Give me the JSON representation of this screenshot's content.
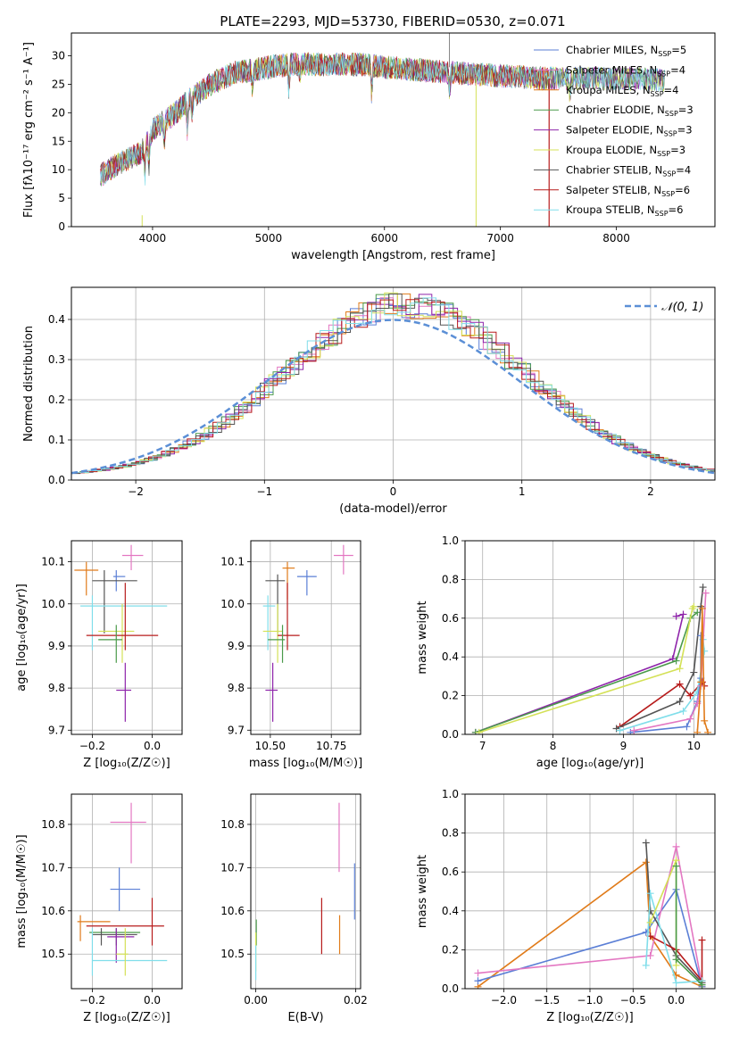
{
  "figure_title": "PLATE=2293, MJD=53730, FIBERID=0530, z=0.071",
  "colors": {
    "chabrier_miles": "#5b7fd6",
    "salpeter_miles": "#e377c2",
    "kroupa_miles": "#e07b1a",
    "chabrier_elodie": "#4a9a4a",
    "salpeter_elodie": "#8e24aa",
    "kroupa_elodie": "#d4e157",
    "chabrier_stelib": "#555555",
    "salpeter_stelib": "#b71c1c",
    "kroupa_stelib": "#80deea",
    "grid": "#b0b0b0",
    "gauss": "#5b8fd6"
  },
  "chart_data": [
    {
      "type": "line",
      "panel": "spectrum",
      "xlabel": "wavelength [Angstrom, rest frame]",
      "ylabel": "Flux [fλ10⁻¹⁷ erg cm⁻² s⁻¹ A⁻¹]",
      "xlim": [
        3300,
        8850
      ],
      "ylim": [
        0,
        34
      ],
      "xticks": [
        4000,
        5000,
        6000,
        7000,
        8000
      ],
      "yticks": [
        0,
        5,
        10,
        15,
        20,
        25,
        30
      ],
      "grid": false,
      "legend_position": "top-right",
      "continuum": {
        "x": [
          3550,
          3700,
          3800,
          3900,
          4000,
          4100,
          4200,
          4300,
          4500,
          4700,
          5000,
          5200,
          5500,
          5800,
          6000,
          6300,
          6600,
          7000,
          7400,
          7800,
          8200,
          8600
        ],
        "y": [
          9,
          11,
          12,
          13,
          17,
          18.5,
          20,
          22,
          25,
          27,
          28,
          28.5,
          28.5,
          28.5,
          28,
          27.5,
          27,
          26.5,
          26,
          26,
          26,
          25.5
        ]
      },
      "series": [
        {
          "name": "Chabrier MILES, N_SSP=5",
          "label_main": "Chabrier MILES, N",
          "label_sub": "SSP",
          "label_tail": "=5",
          "color_key": "chabrier_miles"
        },
        {
          "name": "Salpeter MILES, N_SSP=4",
          "label_main": "Salpeter MILES, N",
          "label_sub": "SSP",
          "label_tail": "=4",
          "color_key": "salpeter_miles"
        },
        {
          "name": "Kroupa MILES, N_SSP=4",
          "label_main": "Kroupa MILES, N",
          "label_sub": "SSP",
          "label_tail": "=4",
          "color_key": "kroupa_miles"
        },
        {
          "name": "Chabrier ELODIE, N_SSP=3",
          "label_main": "Chabrier ELODIE, N",
          "label_sub": "SSP",
          "label_tail": "=3",
          "color_key": "chabrier_elodie"
        },
        {
          "name": "Salpeter ELODIE, N_SSP=3",
          "label_main": "Salpeter ELODIE, N",
          "label_sub": "SSP",
          "label_tail": "=3",
          "color_key": "salpeter_elodie"
        },
        {
          "name": "Kroupa ELODIE, N_SSP=3",
          "label_main": "Kroupa ELODIE, N",
          "label_sub": "SSP",
          "label_tail": "=3",
          "color_key": "kroupa_elodie"
        },
        {
          "name": "Chabrier STELIB, N_SSP=4",
          "label_main": "Chabrier STELIB, N",
          "label_sub": "SSP",
          "label_tail": "=4",
          "color_key": "chabrier_stelib"
        },
        {
          "name": "Salpeter STELIB, N_SSP=6",
          "label_main": "Salpeter STELIB, N",
          "label_sub": "SSP",
          "label_tail": "=6",
          "color_key": "salpeter_stelib"
        },
        {
          "name": "Kroupa STELIB, N_SSP=6",
          "label_main": "Kroupa STELIB, N",
          "label_sub": "SSP",
          "label_tail": "=6",
          "color_key": "kroupa_stelib"
        }
      ]
    },
    {
      "type": "line",
      "panel": "residuals",
      "xlabel": "(data-model)/error",
      "ylabel": "Normed distribution",
      "xlim": [
        -2.5,
        2.5
      ],
      "ylim": [
        0,
        0.48
      ],
      "xticks": [
        -2,
        -1,
        0,
        1,
        2
      ],
      "xtick_labels": [
        "−2",
        "−1",
        "0",
        "1",
        "2"
      ],
      "yticks": [
        0.0,
        0.1,
        0.2,
        0.3,
        0.4
      ],
      "ytick_labels": [
        "0.0",
        "0.1",
        "0.2",
        "0.3",
        "0.4"
      ],
      "grid": true,
      "legend_position": "top-right",
      "legend_label": "𝒩(0, 1)",
      "bin_width": 0.1,
      "hist_mean": 0.1,
      "hist_sigma": 0.93
    },
    {
      "type": "scatter",
      "panel": "age_vs_Z",
      "xlabel": "Z [log₁₀(Z/Z☉)]",
      "ylabel": "age [log₁₀(age/yr)]",
      "xlim": [
        -0.27,
        0.1
      ],
      "ylim": [
        9.69,
        10.15
      ],
      "xticks": [
        -0.2,
        0.0
      ],
      "xtick_labels": [
        "−0.2",
        "0.0"
      ],
      "yticks": [
        9.7,
        9.8,
        9.9,
        10.0,
        10.1
      ],
      "ytick_labels": [
        "9.7",
        "9.8",
        "9.9",
        "10.0",
        "10.1"
      ],
      "grid": true,
      "points": [
        {
          "color_key": "salpeter_miles",
          "x": -0.07,
          "y": 10.115,
          "x_lo": -0.1,
          "x_hi": -0.03,
          "y_lo": 10.08,
          "y_hi": 10.14
        },
        {
          "color_key": "kroupa_miles",
          "x": -0.22,
          "y": 10.08,
          "x_lo": -0.26,
          "x_hi": -0.18,
          "y_lo": 10.02,
          "y_hi": 10.1
        },
        {
          "color_key": "chabrier_miles",
          "x": -0.12,
          "y": 10.065,
          "x_lo": -0.13,
          "x_hi": -0.09,
          "y_lo": 10.03,
          "y_hi": 10.08
        },
        {
          "color_key": "chabrier_stelib",
          "x": -0.16,
          "y": 10.055,
          "x_lo": -0.2,
          "x_hi": -0.05,
          "y_lo": 9.93,
          "y_hi": 10.08
        },
        {
          "color_key": "kroupa_stelib",
          "x": -0.2,
          "y": 9.995,
          "x_lo": -0.24,
          "x_hi": 0.05,
          "y_lo": 9.89,
          "y_hi": 10.02
        },
        {
          "color_key": "kroupa_elodie",
          "x": -0.1,
          "y": 9.935,
          "x_lo": -0.18,
          "x_hi": -0.06,
          "y_lo": 9.86,
          "y_hi": 10.0
        },
        {
          "color_key": "salpeter_stelib",
          "x": -0.09,
          "y": 9.925,
          "x_lo": -0.22,
          "x_hi": 0.02,
          "y_lo": 9.89,
          "y_hi": 10.05
        },
        {
          "color_key": "chabrier_elodie",
          "x": -0.12,
          "y": 9.915,
          "x_lo": -0.18,
          "x_hi": -0.1,
          "y_lo": 9.86,
          "y_hi": 9.95
        },
        {
          "color_key": "salpeter_elodie",
          "x": -0.09,
          "y": 9.795,
          "x_lo": -0.12,
          "x_hi": -0.07,
          "y_lo": 9.72,
          "y_hi": 9.86
        }
      ]
    },
    {
      "type": "scatter",
      "panel": "age_vs_mass",
      "xlabel": "mass [log₁₀(M/M☉)]",
      "ylabel": "",
      "xlim": [
        10.42,
        10.87
      ],
      "ylim": [
        9.69,
        10.15
      ],
      "xticks": [
        10.5,
        10.75
      ],
      "xtick_labels": [
        "10.50",
        "10.75"
      ],
      "yticks": [
        9.7,
        9.8,
        9.9,
        10.0,
        10.1
      ],
      "ytick_labels": [
        "9.7",
        "9.8",
        "9.9",
        "10.0",
        "10.1"
      ],
      "grid": true,
      "points": [
        {
          "color_key": "salpeter_miles",
          "x": 10.8,
          "y": 10.115,
          "x_lo": 10.76,
          "x_hi": 10.84,
          "y_lo": 10.07,
          "y_hi": 10.14
        },
        {
          "color_key": "kroupa_miles",
          "x": 10.57,
          "y": 10.085,
          "x_lo": 10.55,
          "x_hi": 10.6,
          "y_lo": 10.01,
          "y_hi": 10.1
        },
        {
          "color_key": "chabrier_miles",
          "x": 10.65,
          "y": 10.065,
          "x_lo": 10.61,
          "x_hi": 10.69,
          "y_lo": 10.02,
          "y_hi": 10.08
        },
        {
          "color_key": "chabrier_stelib",
          "x": 10.53,
          "y": 10.055,
          "x_lo": 10.48,
          "x_hi": 10.56,
          "y_lo": 9.93,
          "y_hi": 10.07
        },
        {
          "color_key": "kroupa_stelib",
          "x": 10.49,
          "y": 9.995,
          "x_lo": 10.47,
          "x_hi": 10.52,
          "y_lo": 9.89,
          "y_hi": 10.02
        },
        {
          "color_key": "kroupa_elodie",
          "x": 10.53,
          "y": 9.935,
          "x_lo": 10.47,
          "x_hi": 10.55,
          "y_lo": 9.86,
          "y_hi": 10.0
        },
        {
          "color_key": "salpeter_stelib",
          "x": 10.57,
          "y": 9.925,
          "x_lo": 10.53,
          "x_hi": 10.62,
          "y_lo": 9.89,
          "y_hi": 10.05
        },
        {
          "color_key": "chabrier_elodie",
          "x": 10.55,
          "y": 9.915,
          "x_lo": 10.49,
          "x_hi": 10.56,
          "y_lo": 9.86,
          "y_hi": 9.95
        },
        {
          "color_key": "salpeter_elodie",
          "x": 10.51,
          "y": 9.795,
          "x_lo": 10.48,
          "x_hi": 10.53,
          "y_lo": 9.72,
          "y_hi": 9.86
        }
      ]
    },
    {
      "type": "line",
      "panel": "weight_vs_age",
      "xlabel": "age  [log₁₀(age/yr)]",
      "ylabel": "mass weight",
      "xlim": [
        6.75,
        10.3
      ],
      "ylim": [
        0,
        1
      ],
      "xticks": [
        7,
        8,
        9,
        10
      ],
      "xtick_labels": [
        "7",
        "8",
        "9",
        "10"
      ],
      "yticks": [
        0.0,
        0.2,
        0.4,
        0.6,
        0.8,
        1.0
      ],
      "ytick_labels": [
        "0.0",
        "0.2",
        "0.4",
        "0.6",
        "0.8",
        "1.0"
      ],
      "grid": true,
      "series": [
        {
          "color_key": "salpeter_elodie",
          "x": [
            6.9,
            9.7,
            9.85,
            9.75
          ],
          "y": [
            0.01,
            0.39,
            0.62,
            0.61
          ]
        },
        {
          "color_key": "chabrier_elodie",
          "x": [
            6.9,
            9.75,
            9.95,
            10.05
          ],
          "y": [
            0.01,
            0.38,
            0.6,
            0.63
          ]
        },
        {
          "color_key": "kroupa_elodie",
          "x": [
            6.95,
            9.8,
            9.98,
            10.0
          ],
          "y": [
            0.01,
            0.34,
            0.65,
            0.66
          ]
        },
        {
          "color_key": "salpeter_stelib",
          "x": [
            8.95,
            9.8,
            9.95,
            10.12,
            10.15
          ],
          "y": [
            0.04,
            0.26,
            0.2,
            0.27,
            0.25
          ]
        },
        {
          "color_key": "chabrier_stelib",
          "x": [
            8.9,
            9.8,
            10.0,
            10.1,
            10.13
          ],
          "y": [
            0.03,
            0.17,
            0.32,
            0.66,
            0.76
          ]
        },
        {
          "color_key": "kroupa_stelib",
          "x": [
            8.95,
            9.85,
            10.05,
            10.15,
            10.13
          ],
          "y": [
            0.02,
            0.12,
            0.22,
            0.43,
            0.49
          ]
        },
        {
          "color_key": "chabrier_miles",
          "x": [
            9.1,
            9.9,
            10.05,
            10.1,
            10.1
          ],
          "y": [
            0.01,
            0.04,
            0.17,
            0.29,
            0.51
          ]
        },
        {
          "color_key": "salpeter_miles",
          "x": [
            9.15,
            9.95,
            10.05,
            10.1,
            10.17
          ],
          "y": [
            0.02,
            0.08,
            0.16,
            0.25,
            0.73
          ]
        },
        {
          "color_key": "kroupa_miles",
          "x": [
            10.05,
            10.1,
            10.12,
            10.15,
            10.2
          ],
          "y": [
            0.01,
            0.27,
            0.65,
            0.07,
            0.01
          ]
        }
      ]
    },
    {
      "type": "scatter",
      "panel": "mass_vs_Z",
      "xlabel": "Z [log₁₀(Z/Z☉)]",
      "ylabel": "mass [log₁₀(M/M☉)]",
      "xlim": [
        -0.27,
        0.1
      ],
      "ylim": [
        10.42,
        10.87
      ],
      "xticks": [
        -0.2,
        0.0
      ],
      "xtick_labels": [
        "−0.2",
        "0.0"
      ],
      "yticks": [
        10.5,
        10.6,
        10.7,
        10.8
      ],
      "ytick_labels": [
        "10.5",
        "10.6",
        "10.7",
        "10.8"
      ],
      "grid": true,
      "points": [
        {
          "color_key": "salpeter_miles",
          "x": -0.07,
          "y": 10.805,
          "x_lo": -0.14,
          "x_hi": -0.02,
          "y_lo": 10.71,
          "y_hi": 10.85
        },
        {
          "color_key": "chabrier_miles",
          "x": -0.11,
          "y": 10.65,
          "x_lo": -0.14,
          "x_hi": -0.04,
          "y_lo": 10.6,
          "y_hi": 10.7
        },
        {
          "color_key": "kroupa_miles",
          "x": -0.24,
          "y": 10.575,
          "x_lo": -0.25,
          "x_hi": -0.14,
          "y_lo": 10.53,
          "y_hi": 10.59
        },
        {
          "color_key": "salpeter_stelib",
          "x": 0.0,
          "y": 10.565,
          "x_lo": -0.22,
          "x_hi": 0.04,
          "y_lo": 10.52,
          "y_hi": 10.63
        },
        {
          "color_key": "chabrier_elodie",
          "x": -0.12,
          "y": 10.55,
          "x_lo": -0.21,
          "x_hi": -0.04,
          "y_lo": 10.52,
          "y_hi": 10.56
        },
        {
          "color_key": "chabrier_stelib",
          "x": -0.17,
          "y": 10.545,
          "x_lo": -0.2,
          "x_hi": -0.05,
          "y_lo": 10.52,
          "y_hi": 10.56
        },
        {
          "color_key": "salpeter_elodie",
          "x": -0.12,
          "y": 10.54,
          "x_lo": -0.15,
          "x_hi": -0.06,
          "y_lo": 10.48,
          "y_hi": 10.56
        },
        {
          "color_key": "kroupa_stelib",
          "x": -0.2,
          "y": 10.485,
          "x_lo": -0.2,
          "x_hi": 0.05,
          "y_lo": 10.45,
          "y_hi": 10.56
        },
        {
          "color_key": "kroupa_elodie",
          "x": -0.09,
          "y": 10.5,
          "x_lo": -0.12,
          "x_hi": -0.08,
          "y_lo": 10.45,
          "y_hi": 10.56
        }
      ]
    },
    {
      "type": "scatter",
      "panel": "mass_vs_ebv",
      "xlabel": "E(B-V)",
      "ylabel": "",
      "xlim": [
        -0.001,
        0.021
      ],
      "ylim": [
        10.42,
        10.87
      ],
      "xticks": [
        0.0,
        0.02
      ],
      "xtick_labels": [
        "0.00",
        "0.02"
      ],
      "yticks": [
        10.5,
        10.6,
        10.7,
        10.8
      ],
      "ytick_labels": [
        "10.5",
        "10.6",
        "10.7",
        "10.8"
      ],
      "grid": true,
      "points": [
        {
          "color_key": "salpeter_miles",
          "x": 0.0167,
          "y": 10.77,
          "y_lo": 10.69,
          "y_hi": 10.85
        },
        {
          "color_key": "chabrier_miles",
          "x": 0.0198,
          "y": 10.64,
          "y_lo": 10.58,
          "y_hi": 10.71
        },
        {
          "color_key": "salpeter_stelib",
          "x": 0.0132,
          "y": 10.56,
          "y_lo": 10.5,
          "y_hi": 10.63
        },
        {
          "color_key": "kroupa_miles",
          "x": 0.0168,
          "y": 10.54,
          "y_lo": 10.5,
          "y_hi": 10.59
        },
        {
          "color_key": "chabrier_elodie",
          "x": 0.0001,
          "y": 10.55,
          "y_lo": 10.52,
          "y_hi": 10.58
        },
        {
          "color_key": "kroupa_elodie",
          "x": 0.0,
          "y": 10.5,
          "y_lo": 10.46,
          "y_hi": 10.55
        },
        {
          "color_key": "kroupa_stelib",
          "x": 0.0,
          "y": 10.48,
          "y_lo": 10.44,
          "y_hi": 10.52
        }
      ]
    },
    {
      "type": "line",
      "panel": "weight_vs_Z",
      "xlabel": "Z [log₁₀(Z/Z☉)]",
      "ylabel": "mass weight",
      "xlim": [
        -2.45,
        0.45
      ],
      "ylim": [
        0,
        1
      ],
      "xticks": [
        -2.0,
        -1.5,
        -1.0,
        -0.5,
        0.0
      ],
      "xtick_labels": [
        "−2.0",
        "−1.5",
        "−1.0",
        "−0.5",
        "0.0"
      ],
      "yticks": [
        0.0,
        0.2,
        0.4,
        0.6,
        0.8,
        1.0
      ],
      "ytick_labels": [
        "0.0",
        "0.2",
        "0.4",
        "0.6",
        "0.8",
        "1.0"
      ],
      "grid": true,
      "series": [
        {
          "color_key": "kroupa_miles",
          "x": [
            -2.3,
            -0.35,
            -0.3,
            0.0,
            0.3
          ],
          "y": [
            0.01,
            0.65,
            0.27,
            0.07,
            0.01
          ]
        },
        {
          "color_key": "chabrier_miles",
          "x": [
            -2.3,
            -0.35,
            0.0,
            0.3
          ],
          "y": [
            0.04,
            0.29,
            0.51,
            0.01
          ]
        },
        {
          "color_key": "salpeter_miles",
          "x": [
            -2.3,
            -0.3,
            0.0,
            0.3
          ],
          "y": [
            0.08,
            0.17,
            0.73,
            0.02
          ]
        },
        {
          "color_key": "chabrier_stelib",
          "x": [
            -0.35,
            -0.3,
            0.0,
            0.3
          ],
          "y": [
            0.75,
            0.4,
            0.17,
            0.03
          ]
        },
        {
          "color_key": "salpeter_stelib",
          "x": [
            -0.3,
            0.0,
            0.3,
            0.3
          ],
          "y": [
            0.27,
            0.2,
            0.04,
            0.25
          ]
        },
        {
          "color_key": "kroupa_stelib",
          "x": [
            -0.35,
            -0.3,
            0.0,
            0.3
          ],
          "y": [
            0.12,
            0.49,
            0.03,
            0.04
          ]
        },
        {
          "color_key": "kroupa_elodie",
          "x": [
            -0.3,
            0.0,
            0.0
          ],
          "y": [
            0.34,
            0.66,
            0.12
          ]
        },
        {
          "color_key": "chabrier_elodie",
          "x": [
            0.0,
            0.0,
            0.3
          ],
          "y": [
            0.63,
            0.15,
            0.02
          ]
        }
      ]
    }
  ]
}
